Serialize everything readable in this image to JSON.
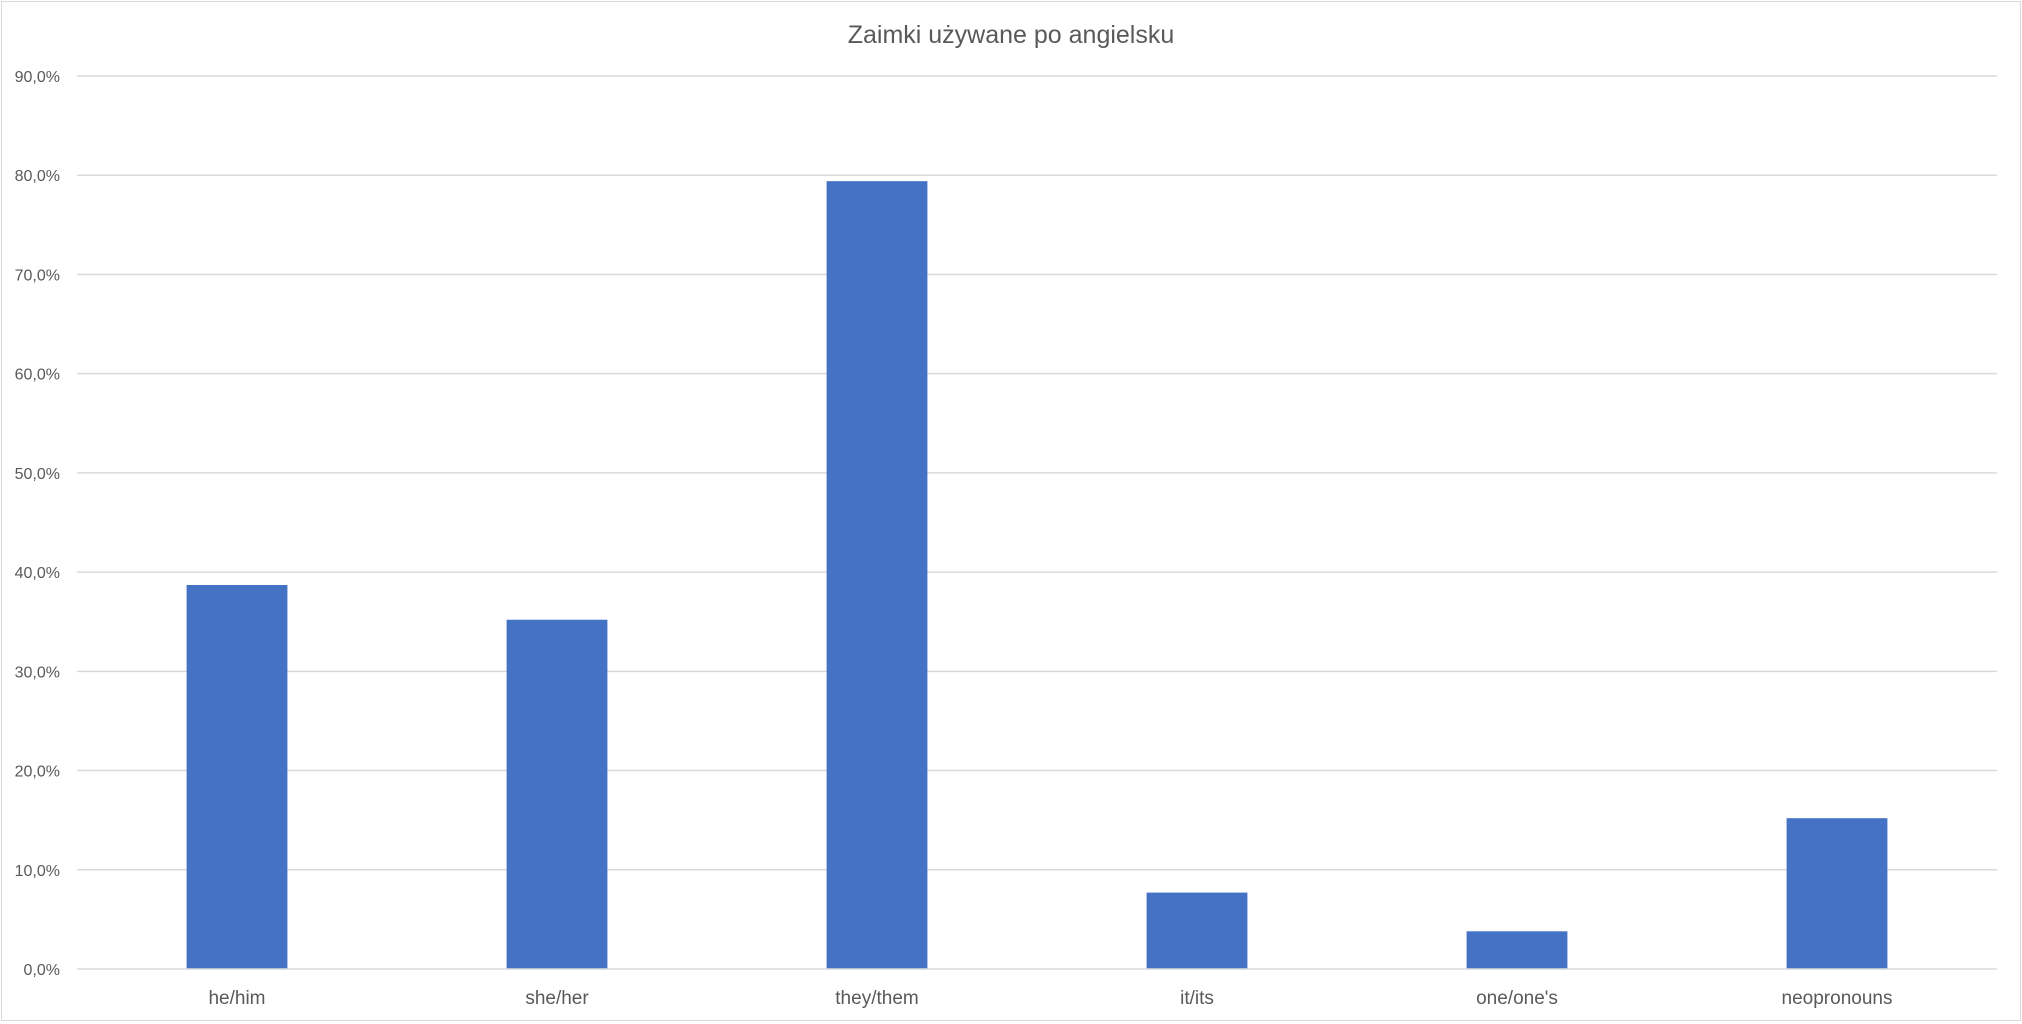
{
  "chart_data": {
    "type": "bar",
    "title": "Zaimki używane po angielsku",
    "xlabel": "",
    "ylabel": "",
    "categories": [
      "he/him",
      "she/her",
      "they/them",
      "it/its",
      "one/one's",
      "neopronouns"
    ],
    "values": [
      38.7,
      35.2,
      79.4,
      7.7,
      3.8,
      15.2
    ],
    "ylim": [
      0,
      90
    ],
    "yticks": [
      0,
      10,
      20,
      30,
      40,
      50,
      60,
      70,
      80,
      90
    ],
    "ytick_labels": [
      "0,0%",
      "10,0%",
      "20,0%",
      "30,0%",
      "40,0%",
      "50,0%",
      "60,0%",
      "70,0%",
      "80,0%",
      "90,0%"
    ],
    "grid": true,
    "legend": "none",
    "bar_color": "#4472c4",
    "grid_color": "#d9d9d9",
    "text_color": "#595959"
  }
}
